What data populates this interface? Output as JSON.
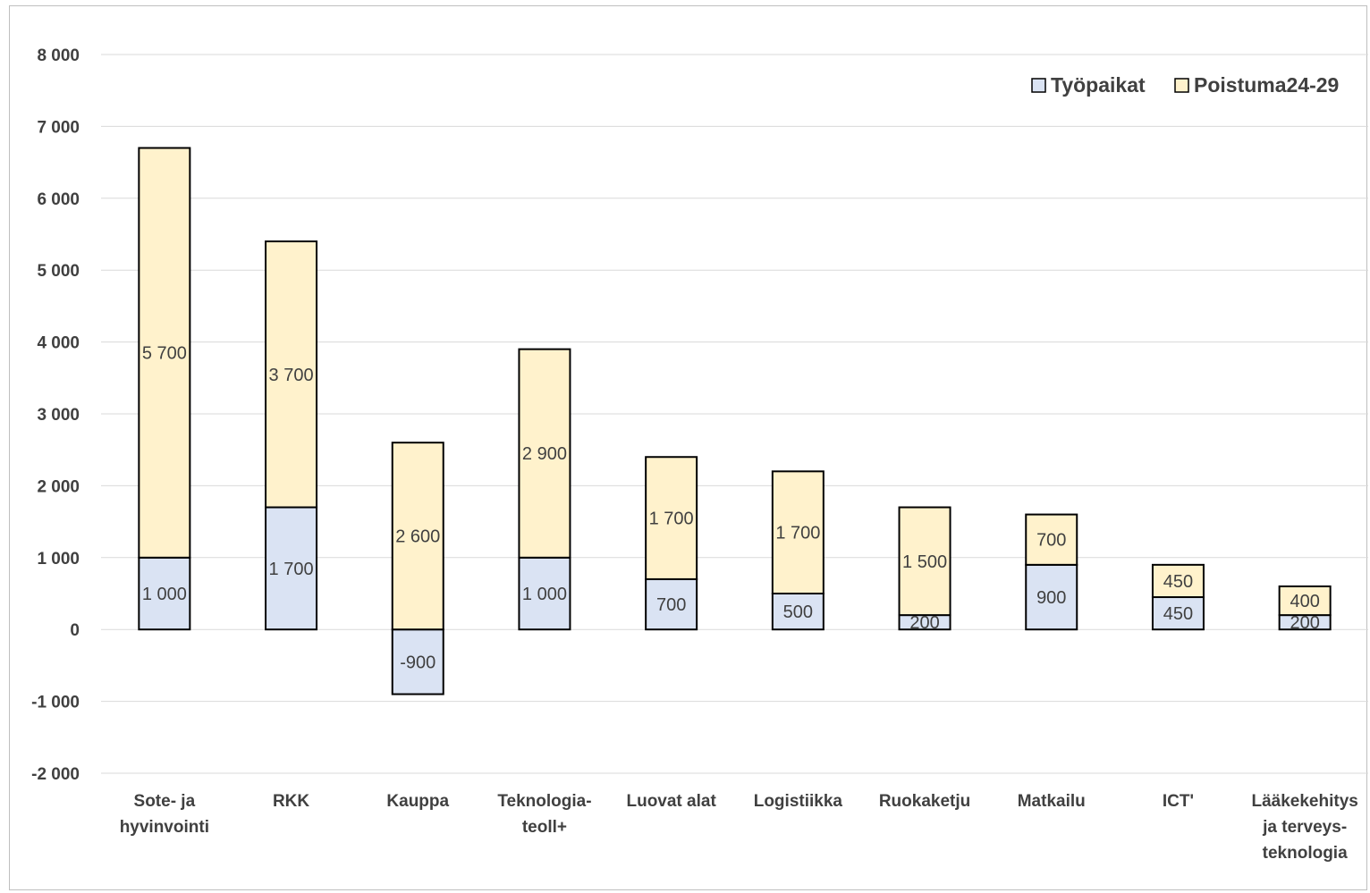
{
  "chart_data": {
    "type": "bar",
    "stacked": true,
    "categories": [
      [
        "Sote- ja",
        "hyvinvointi"
      ],
      [
        "RKK"
      ],
      [
        "Kauppa"
      ],
      [
        "Teknologia-",
        "teoll+"
      ],
      [
        "Luovat alat"
      ],
      [
        "Logistiikka"
      ],
      [
        "Ruokaketju"
      ],
      [
        "Matkailu"
      ],
      [
        "ICT'"
      ],
      [
        "Lääkekehitys",
        "ja terveys-",
        "teknologia"
      ]
    ],
    "series": [
      {
        "name": "Työpaikat",
        "color": "#dae3f3",
        "values": [
          1000,
          1700,
          -900,
          1000,
          700,
          500,
          200,
          900,
          450,
          200
        ],
        "labels": [
          "1 000",
          "1 700",
          "-900",
          "1 000",
          "700",
          "500",
          "200",
          "900",
          "450",
          "200"
        ]
      },
      {
        "name": "Poistuma24-29",
        "color": "#fff2cc",
        "values": [
          5700,
          3700,
          2600,
          2900,
          1700,
          1700,
          1500,
          700,
          450,
          400
        ],
        "labels": [
          "5 700",
          "3 700",
          "2 600",
          "2 900",
          "1 700",
          "1 700",
          "1 500",
          "700",
          "450",
          "400"
        ]
      }
    ],
    "ylim": [
      -2000,
      8000
    ],
    "yticks": [
      8000,
      7000,
      6000,
      5000,
      4000,
      3000,
      2000,
      1000,
      0,
      -1000,
      -2000
    ],
    "ytick_labels": [
      "8 000",
      "7 000",
      "6 000",
      "5 000",
      "4 000",
      "3 000",
      "2 000",
      "1 000",
      "0",
      "-1 000",
      "-2 000"
    ],
    "grid": true,
    "legend": "top-right",
    "bar_outline": "#000000",
    "grid_color": "#d9d9d9"
  }
}
